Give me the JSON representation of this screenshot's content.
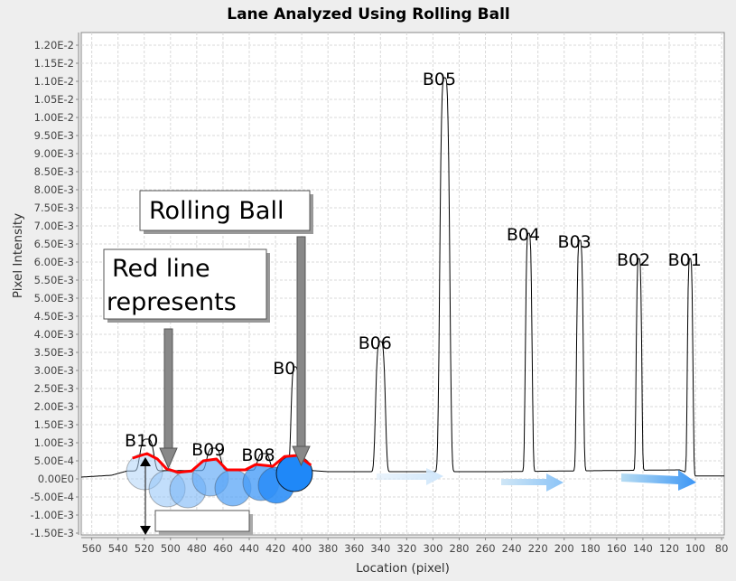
{
  "chart_data": {
    "type": "line",
    "title": "Lane Analyzed Using Rolling Ball",
    "xlabel": "Location (pixel)",
    "ylabel": "Pixel Intensity",
    "xlim": [
      568,
      78
    ],
    "ylim": [
      -0.00155,
      0.01235
    ],
    "x_reversed": true,
    "grid": true,
    "x_ticks": [
      560,
      540,
      520,
      500,
      480,
      460,
      440,
      420,
      400,
      380,
      360,
      340,
      320,
      300,
      280,
      260,
      240,
      220,
      200,
      180,
      160,
      140,
      120,
      100,
      80
    ],
    "y_ticks": [
      {
        "v": 0.012,
        "label": "1.20E-2"
      },
      {
        "v": 0.0115,
        "label": "1.15E-2"
      },
      {
        "v": 0.011,
        "label": "1.10E-2"
      },
      {
        "v": 0.0105,
        "label": "1.05E-2"
      },
      {
        "v": 0.01,
        "label": "1.00E-2"
      },
      {
        "v": 0.0095,
        "label": "9.50E-3"
      },
      {
        "v": 0.009,
        "label": "9.00E-3"
      },
      {
        "v": 0.0085,
        "label": "8.50E-3"
      },
      {
        "v": 0.008,
        "label": "8.00E-3"
      },
      {
        "v": 0.0075,
        "label": "7.50E-3"
      },
      {
        "v": 0.007,
        "label": "7.00E-3"
      },
      {
        "v": 0.0065,
        "label": "6.50E-3"
      },
      {
        "v": 0.006,
        "label": "6.00E-3"
      },
      {
        "v": 0.0055,
        "label": "5.50E-3"
      },
      {
        "v": 0.005,
        "label": "5.00E-3"
      },
      {
        "v": 0.0045,
        "label": "4.50E-3"
      },
      {
        "v": 0.004,
        "label": "4.00E-3"
      },
      {
        "v": 0.0035,
        "label": "3.50E-3"
      },
      {
        "v": 0.003,
        "label": "3.00E-3"
      },
      {
        "v": 0.0025,
        "label": "2.50E-3"
      },
      {
        "v": 0.002,
        "label": "2.00E-3"
      },
      {
        "v": 0.0015,
        "label": "1.50E-3"
      },
      {
        "v": 0.001,
        "label": "1.00E-3"
      },
      {
        "v": 0.0005,
        "label": "5.00E-4"
      },
      {
        "v": 0,
        "label": "0.00E0"
      },
      {
        "v": -0.0005,
        "label": "-5.00E-4"
      },
      {
        "v": -0.001,
        "label": "-1.00E-3"
      },
      {
        "v": -0.0015,
        "label": "-1.50E-3"
      }
    ],
    "peaks": [
      {
        "label": "B01",
        "x": 104,
        "y": 0.0061
      },
      {
        "label": "B02",
        "x": 143,
        "y": 0.0061
      },
      {
        "label": "B03",
        "x": 188,
        "y": 0.0066
      },
      {
        "label": "B04",
        "x": 227,
        "y": 0.0068
      },
      {
        "label": "B05",
        "x": 291,
        "y": 0.0111
      },
      {
        "label": "B06",
        "x": 340,
        "y": 0.0038
      },
      {
        "label": "B07",
        "x": 405,
        "y": 0.0031
      },
      {
        "label": "B08",
        "x": 429,
        "y": 0.0007
      },
      {
        "label": "B09",
        "x": 467,
        "y": 0.00085
      },
      {
        "label": "B10",
        "x": 518,
        "y": 0.0011
      }
    ],
    "baseline": [
      [
        568,
        5e-05
      ],
      [
        545,
        0.0001
      ],
      [
        533,
        0.00022
      ],
      [
        400,
        0.00025
      ],
      [
        380,
        0.0002
      ],
      [
        250,
        0.0002
      ],
      [
        112,
        0.00025
      ],
      [
        100,
        8e-05
      ],
      [
        78,
        8e-05
      ]
    ],
    "rolling_ball_line": {
      "color": "#ff0000",
      "x": [
        529,
        518,
        510,
        503,
        494,
        484,
        475,
        465,
        457,
        443,
        435,
        422,
        413,
        403,
        393
      ],
      "y": [
        0.000575,
        0.0007,
        0.00055,
        0.00028,
        0.00018,
        0.00022,
        0.0005,
        0.00055,
        0.00025,
        0.00025,
        0.0004,
        0.00035,
        0.00062,
        0.00065,
        0.00038
      ]
    }
  },
  "annotations": {
    "rolling_ball_label": "Rolling Ball",
    "red_line_label_1": "Red line",
    "red_line_label_2": "represents",
    "empty_box": ""
  }
}
